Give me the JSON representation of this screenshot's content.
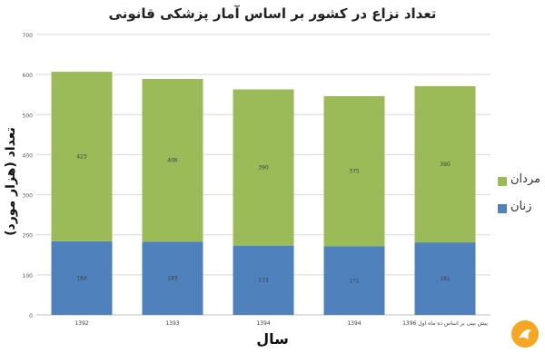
{
  "chart_data": {
    "type": "bar",
    "stacked": true,
    "title": "تعداد نزاع در کشور بر اساس آمار پزشکی قانونی",
    "xlabel": "سال",
    "ylabel": "تعداد (هزار مورد)",
    "categories": [
      "1392",
      "1393",
      "1394",
      "1394",
      "پیش بینی بر اساس ده ماه اول 1396"
    ],
    "ylim": [
      0,
      700
    ],
    "yticks": [
      0,
      100,
      200,
      300,
      400,
      500,
      600,
      700
    ],
    "grid": true,
    "legend_position": "right",
    "series": [
      {
        "name": "زنان",
        "color": "#4f81bd",
        "values": [
          184,
          183,
          173,
          171,
          181
        ]
      },
      {
        "name": "مردان",
        "color": "#9bbb59",
        "values": [
          423,
          406,
          390,
          375,
          390
        ]
      }
    ],
    "data_labels": [
      [
        "184",
        "183",
        "173",
        "171",
        "181"
      ],
      [
        "423",
        "406",
        "390",
        "375",
        "390"
      ]
    ]
  }
}
